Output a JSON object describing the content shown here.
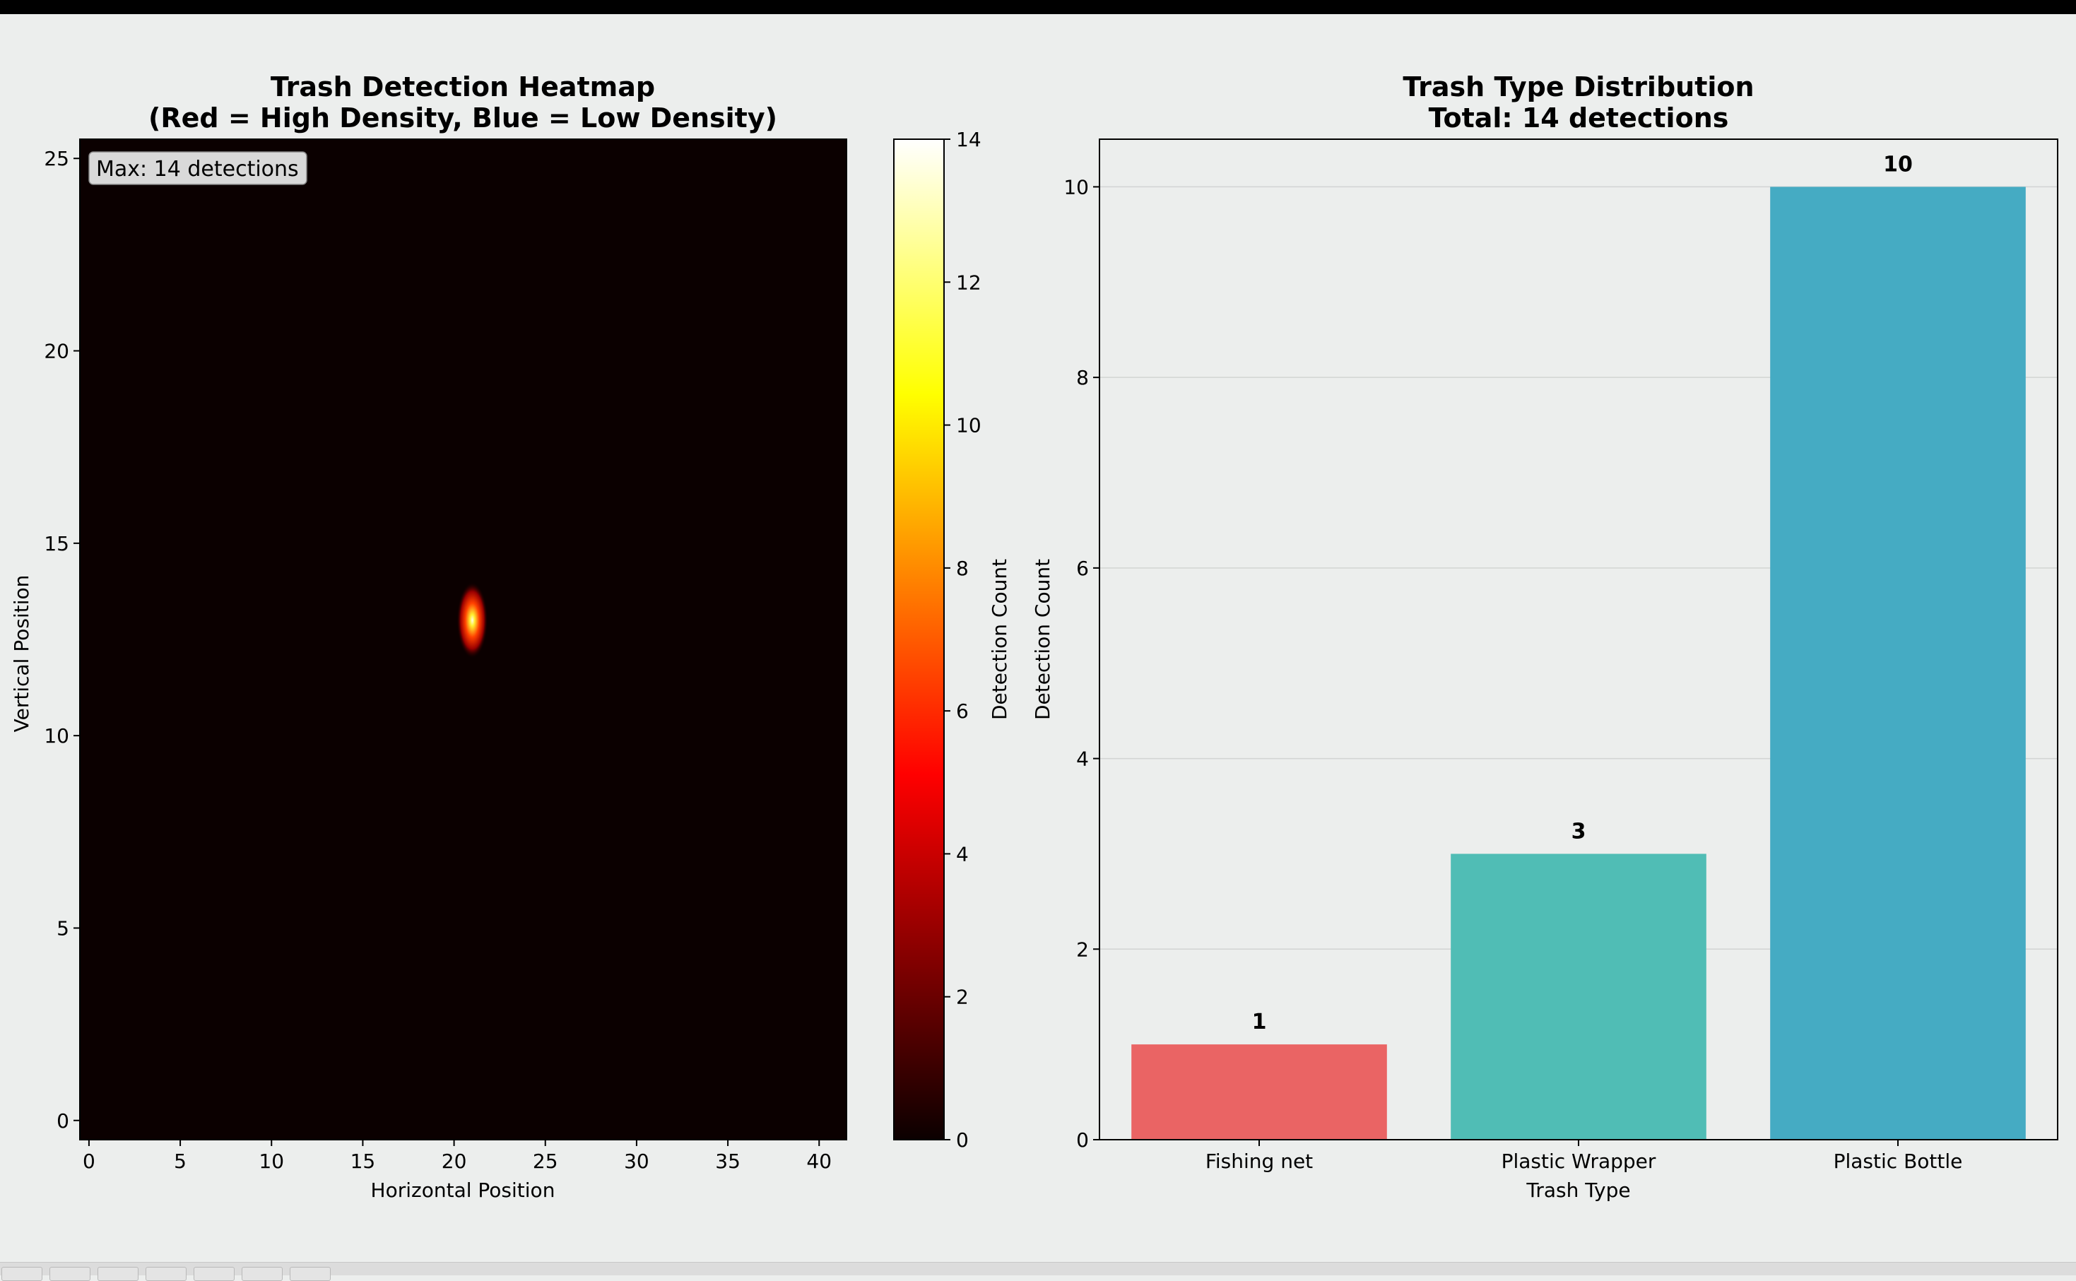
{
  "window": {
    "toolbar_buttons": [
      "home-icon",
      "back-icon",
      "forward-icon",
      "pan-icon",
      "zoom-icon",
      "configure-icon",
      "save-icon"
    ]
  },
  "chart_data": [
    {
      "type": "heatmap",
      "title_line1": "Trash Detection Heatmap",
      "title_line2": "(Red = High Density, Blue = Low Density)",
      "xlabel": "Horizontal Position",
      "ylabel": "Vertical Position",
      "xlim": [
        -0.5,
        41.5
      ],
      "ylim": [
        -0.5,
        25.5
      ],
      "xticks": [
        0,
        5,
        10,
        15,
        20,
        25,
        30,
        35,
        40
      ],
      "yticks": [
        0,
        5,
        10,
        15,
        20,
        25
      ],
      "colormap": "hot",
      "colorbar_label": "Detection Count",
      "colorbar_range": [
        0,
        14
      ],
      "colorbar_ticks": [
        0,
        2,
        4,
        6,
        8,
        10,
        12,
        14
      ],
      "hotspot": {
        "x": 21,
        "y": 13,
        "value": 14
      },
      "annotation": "Max: 14 detections",
      "grid": false
    },
    {
      "type": "bar",
      "title_line1": "Trash Type Distribution",
      "title_line2": "Total: 14 detections",
      "xlabel": "Trash Type",
      "ylabel": "Detection Count",
      "categories": [
        "Fishing net",
        "Plastic Wrapper",
        "Plastic Bottle"
      ],
      "values": [
        1,
        3,
        10
      ],
      "data_labels": [
        "1",
        "3",
        "10"
      ],
      "colors": [
        "#ea6464",
        "#50bdb5",
        "#45abc3"
      ],
      "ylim": [
        0,
        10.5
      ],
      "yticks": [
        0,
        2,
        4,
        6,
        8,
        10
      ],
      "grid": "y"
    }
  ]
}
